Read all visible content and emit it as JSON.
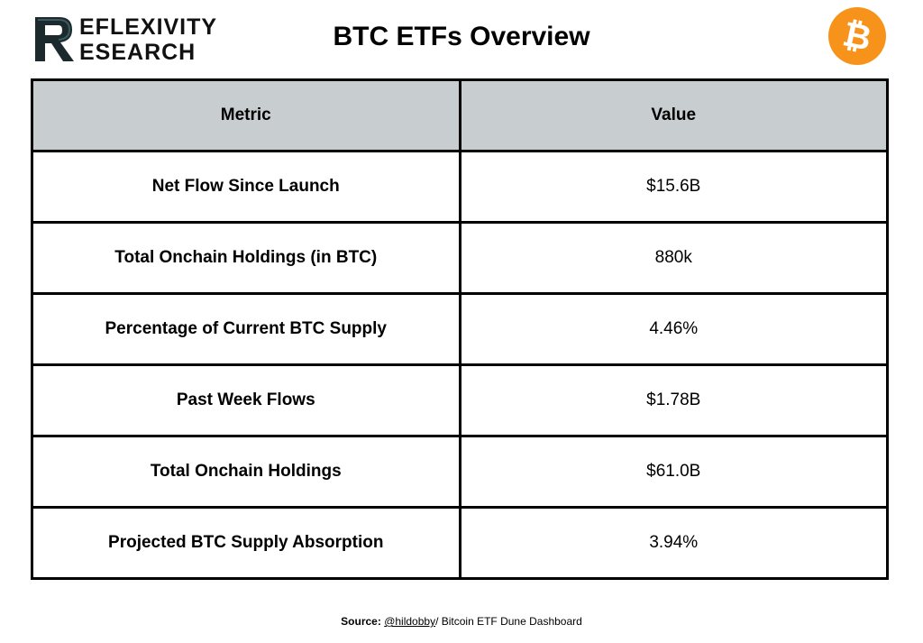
{
  "brand": {
    "line1": "EFLEXIVITY",
    "line2": "ESEARCH",
    "logo_colors": {
      "dark": "#1c2a2e",
      "teal": "#3a5a5f"
    }
  },
  "title": "BTC ETFs Overview",
  "btc_icon": {
    "name": "bitcoin-icon",
    "glyph": "₿",
    "color": "#f7931a"
  },
  "table": {
    "headers": [
      "Metric",
      "Value"
    ],
    "rows": [
      {
        "metric": "Net Flow Since Launch",
        "value": "$15.6B"
      },
      {
        "metric": "Total Onchain Holdings (in BTC)",
        "value": "880k"
      },
      {
        "metric": "Percentage of Current BTC Supply",
        "value": "4.46%"
      },
      {
        "metric": "Past Week Flows",
        "value": "$1.78B"
      },
      {
        "metric": "Total Onchain Holdings",
        "value": "$61.0B"
      },
      {
        "metric": "Projected BTC Supply Absorption",
        "value": "3.94%"
      }
    ],
    "header_color": "#c8cdcf"
  },
  "source": {
    "label": "Source:",
    "link": "@hildobby",
    "text": "/ Bitcoin ETF Dune Dashboard"
  }
}
